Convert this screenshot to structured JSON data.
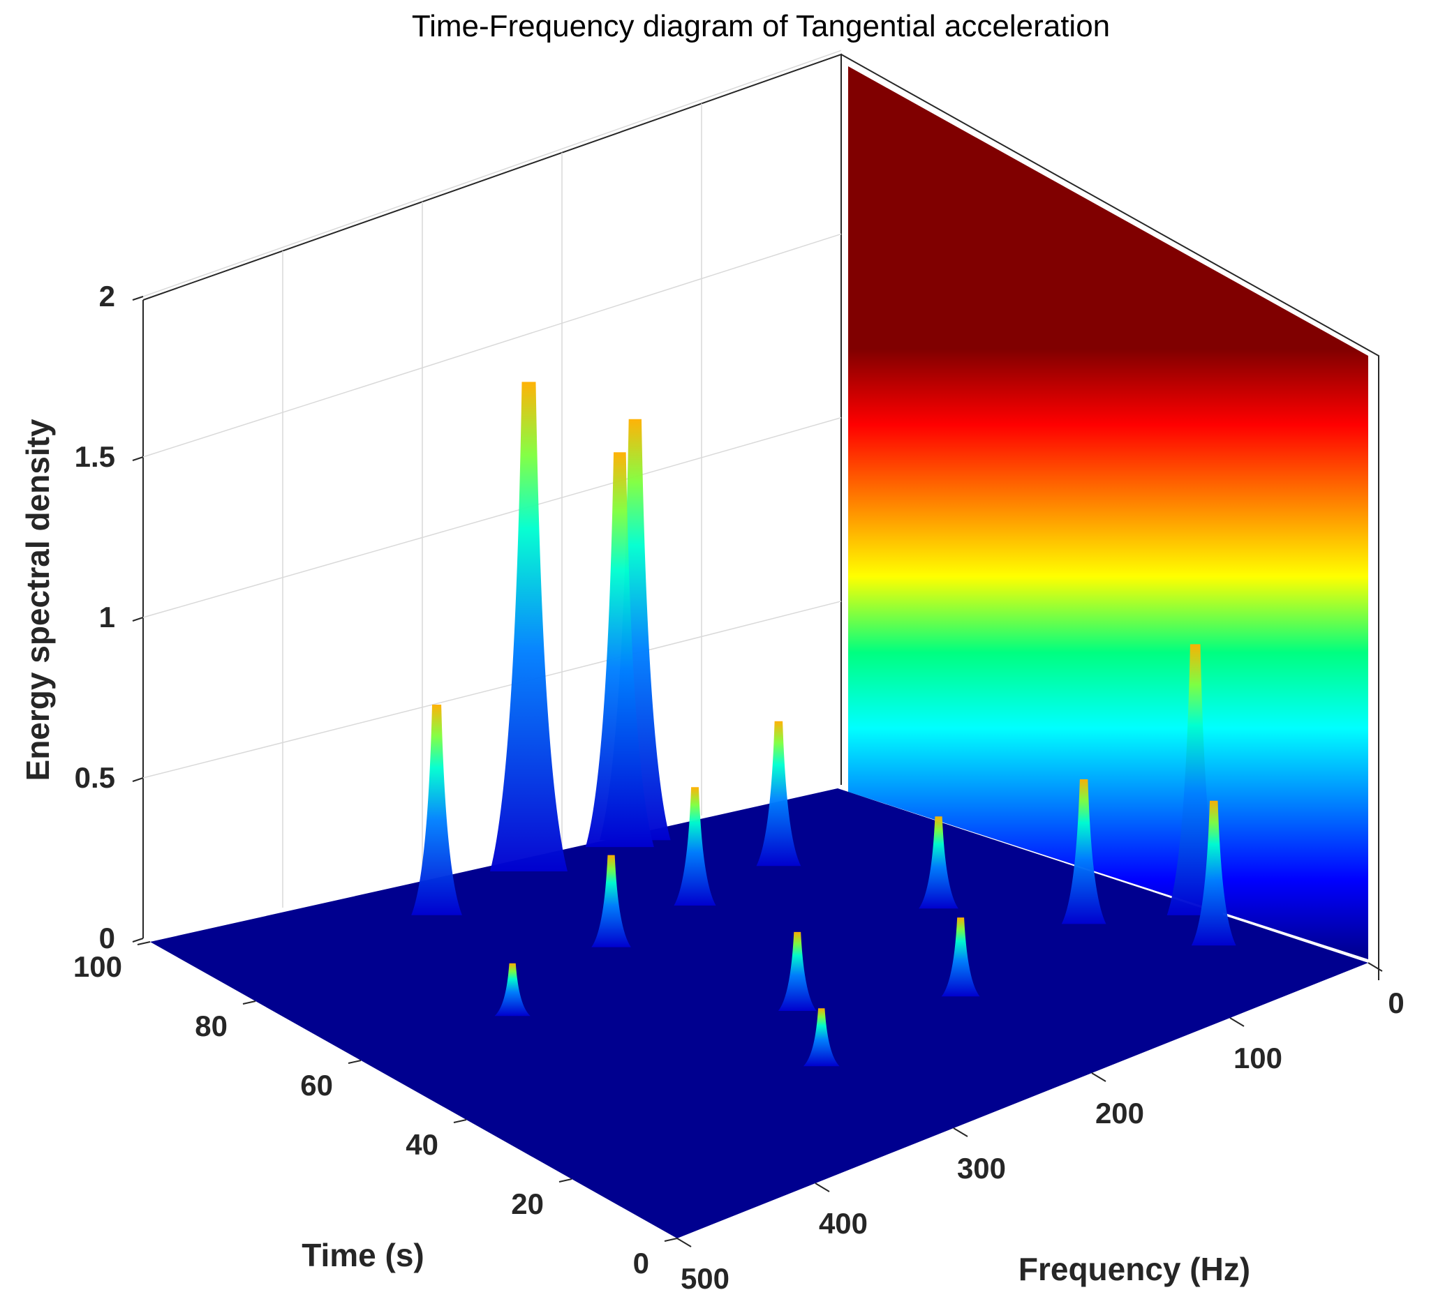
{
  "chart_data": {
    "type": "surface3d",
    "title": "Time-Frequency diagram of Tangential acceleration",
    "xlabel": "Frequency (Hz)",
    "ylabel": "Time (s)",
    "zlabel": "Energy spectral density",
    "xlim": [
      0,
      500
    ],
    "ylim": [
      0,
      100
    ],
    "zlim": [
      0,
      2
    ],
    "xticks": [
      "0",
      "100",
      "200",
      "300",
      "400",
      "500"
    ],
    "yticks": [
      "0",
      "20",
      "40",
      "60",
      "80",
      "100"
    ],
    "zticks": [
      "0",
      "0.5",
      "1",
      "1.5",
      "2"
    ],
    "colormap": "jet",
    "colorbar_wall": "back wall shows the colormap gradient from 0 (dark blue) to 2 (dark red)",
    "grid": true,
    "peaks": [
      {
        "frequency": 240,
        "time": 96,
        "value": 1.86
      },
      {
        "frequency": 155,
        "time": 98,
        "value": 1.6
      },
      {
        "frequency": 170,
        "time": 97,
        "value": 1.5
      },
      {
        "frequency": 10,
        "time": 30,
        "value": 1.03
      },
      {
        "frequency": 60,
        "time": 38,
        "value": 0.55
      },
      {
        "frequency": 330,
        "time": 90,
        "value": 0.8
      },
      {
        "frequency": 120,
        "time": 80,
        "value": 0.55
      },
      {
        "frequency": 200,
        "time": 75,
        "value": 0.45
      },
      {
        "frequency": 35,
        "time": 20,
        "value": 0.55
      },
      {
        "frequency": 280,
        "time": 70,
        "value": 0.35
      },
      {
        "frequency": 260,
        "time": 40,
        "value": 0.3
      },
      {
        "frequency": 180,
        "time": 30,
        "value": 0.3
      },
      {
        "frequency": 300,
        "time": 25,
        "value": 0.22
      },
      {
        "frequency": 390,
        "time": 60,
        "value": 0.2
      },
      {
        "frequency": 100,
        "time": 55,
        "value": 0.35
      }
    ],
    "colors": {
      "c0": "#00008f",
      "c1": "#0000ff",
      "c2": "#00ffff",
      "c3": "#ffff00",
      "c4": "#ff0000",
      "c5": "#800000"
    }
  }
}
